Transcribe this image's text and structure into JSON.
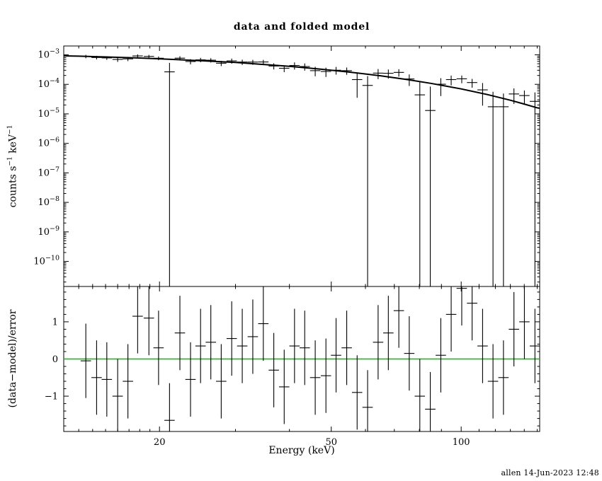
{
  "chart_data": {
    "type": "scatter",
    "title": "data and folded model",
    "xlabel": "Energy (keV)",
    "annotation": "allen 14-Jun-2023 12:48",
    "colors": {
      "data": "#000000",
      "model": "#000000",
      "zero_line": "#00c000",
      "background": "#ffffff",
      "frame": "#000000"
    },
    "x_scale": "log",
    "x_range": [
      12,
      152
    ],
    "x_major_ticks": [
      {
        "v": 20,
        "label": "20"
      },
      {
        "v": 50,
        "label": "50"
      },
      {
        "v": 100,
        "label": "100"
      }
    ],
    "x_minor_ticks": [
      13,
      14,
      15,
      16,
      17,
      18,
      19,
      30,
      40,
      60,
      70,
      80,
      90,
      110,
      120,
      130,
      140,
      150
    ],
    "bin_half_ratio": 1.028,
    "panels": {
      "top": {
        "ylabel_markup": "counts s^−1^ keV^−1^",
        "y_scale": "log",
        "y_log_range": [
          -10.85,
          -2.7
        ],
        "y_major_exponents": [
          -3,
          -4,
          -5,
          -6,
          -7,
          -8,
          -9,
          -10
        ],
        "series": [
          {
            "name": "data",
            "type": "errorbar",
            "points": [
              [
                13.5,
                0.000881,
                0.000115
              ],
              [
                14.3,
                0.000811,
                0.000113
              ],
              [
                15.1,
                0.000786,
                0.00011
              ],
              [
                16.0,
                0.0007,
                0.000124
              ],
              [
                16.9,
                0.000731,
                0.00012
              ],
              [
                17.8,
                0.000917,
                0.000117
              ],
              [
                18.9,
                0.000882,
                0.000114
              ],
              [
                19.9,
                0.000768,
                0.00011
              ],
              [
                21.1,
                0.000265,
                0.00027
              ],
              [
                22.3,
                0.000771,
                0.000123
              ],
              [
                23.6,
                0.000594,
                0.000119
              ],
              [
                24.9,
                0.000675,
                0.000114
              ],
              [
                26.3,
                0.000658,
                0.00011
              ],
              [
                27.8,
                0.00052,
                0.000105
              ],
              [
                29.4,
                0.000623,
                0.000122
              ],
              [
                31.1,
                0.00057,
                0.000116
              ],
              [
                32.9,
                0.000568,
                0.00011
              ],
              [
                34.8,
                0.000573,
                0.000104
              ],
              [
                36.8,
                0.000418,
                9.8e-05
              ],
              [
                38.9,
                0.000351,
                9.2e-05
              ],
              [
                41.1,
                0.000435,
                0.000118
              ],
              [
                43.4,
                0.000401,
                0.00011
              ],
              [
                45.9,
                0.000291,
                0.000103
              ],
              [
                48.6,
                0.000273,
                9.5e-05
              ],
              [
                51.3,
                0.000301,
                8.8e-05
              ],
              [
                54.3,
                0.000291,
                8e-05
              ],
              [
                57.4,
                0.000145,
                0.00011
              ],
              [
                60.7,
                9.2e-05,
                9.9e-05
              ],
              [
                64.2,
                0.00024,
                9e-05
              ],
              [
                67.8,
                0.000237,
                8.1e-05
              ],
              [
                71.7,
                0.000254,
                7.2e-05
              ],
              [
                75.8,
                0.000152,
                6.4e-05
              ],
              [
                80.2,
                4.4e-05,
                8.1e-05
              ],
              [
                84.8,
                1.3e-05,
                7.1e-05
              ],
              [
                89.7,
                0.000101,
                6.1e-05
              ],
              [
                94.8,
                0.000145,
                5.3e-05
              ],
              [
                100.3,
                0.000154,
                4.5e-05
              ],
              [
                106.0,
                0.000115,
                3.8e-05
              ],
              [
                112.1,
                6.5e-05,
                4.6e-05
              ],
              [
                118.5,
                1.74e-05,
                3.84e-05
              ],
              [
                125.3,
                1.74e-05,
                3.14e-05
              ],
              [
                132.5,
                4.72e-05,
                2.55e-05
              ],
              [
                140.1,
                4.17e-05,
                2.03e-05
              ],
              [
                148.2,
                2.65e-05,
                2.7e-05
              ]
            ]
          },
          {
            "name": "folded model",
            "type": "line",
            "points": [
              [
                12,
                0.00092
              ],
              [
                13,
                0.0009
              ],
              [
                15,
                0.00085
              ],
              [
                18,
                0.00078
              ],
              [
                21,
                0.00071
              ],
              [
                25,
                0.00063
              ],
              [
                30,
                0.00055
              ],
              [
                35,
                0.00047
              ],
              [
                40,
                0.00041
              ],
              [
                47,
                0.00033
              ],
              [
                55,
                0.00026
              ],
              [
                65,
                0.000195
              ],
              [
                75,
                0.000145
              ],
              [
                85,
                0.000108
              ],
              [
                100,
                7e-05
              ],
              [
                115,
                4.5e-05
              ],
              [
                130,
                2.9e-05
              ],
              [
                140,
                2.15e-05
              ],
              [
                150,
                1.6e-05
              ],
              [
                152,
                1.55e-05
              ]
            ]
          }
        ]
      },
      "bottom": {
        "ylabel_markup": "(data−model)/error",
        "y_scale": "linear",
        "y_range": [
          -1.95,
          1.95
        ],
        "y_major_ticks": [
          {
            "v": -1,
            "label": "−1"
          },
          {
            "v": 0,
            "label": "0"
          },
          {
            "v": 1,
            "label": "1"
          }
        ],
        "y_minor_step": 0.2,
        "zero_line": 0,
        "residuals": {
          "name": "(data-model)/error",
          "type": "errorbar",
          "bar_half": 1.0,
          "points": [
            [
              13.5,
              -0.05
            ],
            [
              14.3,
              -0.5
            ],
            [
              15.1,
              -0.55
            ],
            [
              16.0,
              -1.0
            ],
            [
              16.9,
              -0.6
            ],
            [
              17.8,
              1.15
            ],
            [
              18.9,
              1.1
            ],
            [
              19.9,
              0.3
            ],
            [
              21.1,
              -1.65
            ],
            [
              22.3,
              0.7
            ],
            [
              23.6,
              -0.55
            ],
            [
              24.9,
              0.35
            ],
            [
              26.3,
              0.45
            ],
            [
              27.8,
              -0.6
            ],
            [
              29.4,
              0.55
            ],
            [
              31.1,
              0.35
            ],
            [
              32.9,
              0.6
            ],
            [
              34.8,
              0.95
            ],
            [
              36.8,
              -0.3
            ],
            [
              38.9,
              -0.75
            ],
            [
              41.1,
              0.35
            ],
            [
              43.4,
              0.3
            ],
            [
              45.9,
              -0.5
            ],
            [
              48.6,
              -0.45
            ],
            [
              51.3,
              0.1
            ],
            [
              54.3,
              0.3
            ],
            [
              57.4,
              -0.9
            ],
            [
              60.7,
              -1.3
            ],
            [
              64.2,
              0.45
            ],
            [
              67.8,
              0.7
            ],
            [
              71.7,
              1.3
            ],
            [
              75.8,
              0.15
            ],
            [
              80.2,
              -1.0
            ],
            [
              84.8,
              -1.35
            ],
            [
              89.7,
              0.1
            ],
            [
              94.8,
              1.2
            ],
            [
              100.3,
              1.9
            ],
            [
              106.0,
              1.5
            ],
            [
              112.1,
              0.35
            ],
            [
              118.5,
              -0.6
            ],
            [
              125.3,
              -0.5
            ],
            [
              132.5,
              0.8
            ],
            [
              140.1,
              1.0
            ],
            [
              148.2,
              0.35
            ]
          ]
        }
      }
    }
  }
}
